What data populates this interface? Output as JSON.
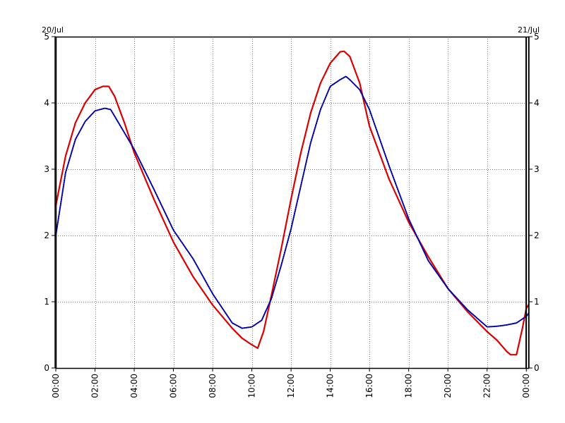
{
  "chart_data": {
    "type": "line",
    "date_labels": {
      "left": "20/Jul",
      "right": "21/Jul"
    },
    "x_tick_labels": [
      "00:00",
      "02:00",
      "04:00",
      "06:00",
      "08:00",
      "10:00",
      "12:00",
      "14:00",
      "16:00",
      "18:00",
      "20:00",
      "22:00",
      "00:00"
    ],
    "x_tick_hours": [
      0,
      2,
      4,
      6,
      8,
      10,
      12,
      14,
      16,
      18,
      20,
      22,
      24
    ],
    "xlim_hours": [
      0,
      24.1
    ],
    "y_ticks": [
      0,
      1,
      2,
      3,
      4,
      5
    ],
    "y_tick_labels": [
      "0",
      "1",
      "2",
      "3",
      "4",
      "5"
    ],
    "ylim": [
      0,
      5
    ],
    "grid": true,
    "series": [
      {
        "color": "#dd0000",
        "style": "solid",
        "x_hours": [
          0,
          0.5,
          1,
          1.5,
          2,
          2.4,
          2.7,
          3,
          3.5,
          4,
          5,
          6,
          7,
          8,
          9,
          9.5,
          10,
          10.3,
          10.6,
          11,
          11.5,
          12,
          12.5,
          13,
          13.5,
          14,
          14.5,
          14.7,
          15,
          15.5,
          16,
          17,
          18,
          19,
          20,
          21,
          22,
          22.5,
          23,
          23.2,
          23.5,
          23.8,
          24,
          24.1
        ],
        "y": [
          2.45,
          3.2,
          3.7,
          4.0,
          4.2,
          4.25,
          4.25,
          4.1,
          3.7,
          3.25,
          2.55,
          1.9,
          1.38,
          0.95,
          0.6,
          0.45,
          0.35,
          0.3,
          0.55,
          1.1,
          1.8,
          2.55,
          3.25,
          3.85,
          4.3,
          4.6,
          4.77,
          4.78,
          4.7,
          4.3,
          3.65,
          2.85,
          2.2,
          1.68,
          1.2,
          0.85,
          0.55,
          0.42,
          0.25,
          0.2,
          0.2,
          0.6,
          0.9,
          0.95
        ]
      },
      {
        "color": "#0000aa",
        "style": "dotted",
        "x_hours": [
          0,
          0.5,
          1,
          1.5,
          2,
          2.5,
          2.8,
          3,
          3.5,
          4,
          5,
          6,
          7,
          8,
          9,
          9.5,
          10,
          10.5,
          11,
          11.5,
          12,
          12.5,
          13,
          13.5,
          14,
          14.5,
          14.8,
          15,
          15.5,
          16,
          17,
          18,
          19,
          20,
          21,
          22,
          22.5,
          23,
          23.5,
          24,
          24.1
        ],
        "y": [
          2.0,
          2.95,
          3.45,
          3.72,
          3.88,
          3.92,
          3.9,
          3.8,
          3.55,
          3.3,
          2.7,
          2.08,
          1.65,
          1.12,
          0.68,
          0.6,
          0.62,
          0.72,
          1.05,
          1.55,
          2.1,
          2.75,
          3.4,
          3.9,
          4.25,
          4.35,
          4.4,
          4.35,
          4.2,
          3.9,
          3.05,
          2.25,
          1.62,
          1.2,
          0.88,
          0.62,
          0.63,
          0.65,
          0.68,
          0.78,
          0.82
        ]
      }
    ]
  }
}
